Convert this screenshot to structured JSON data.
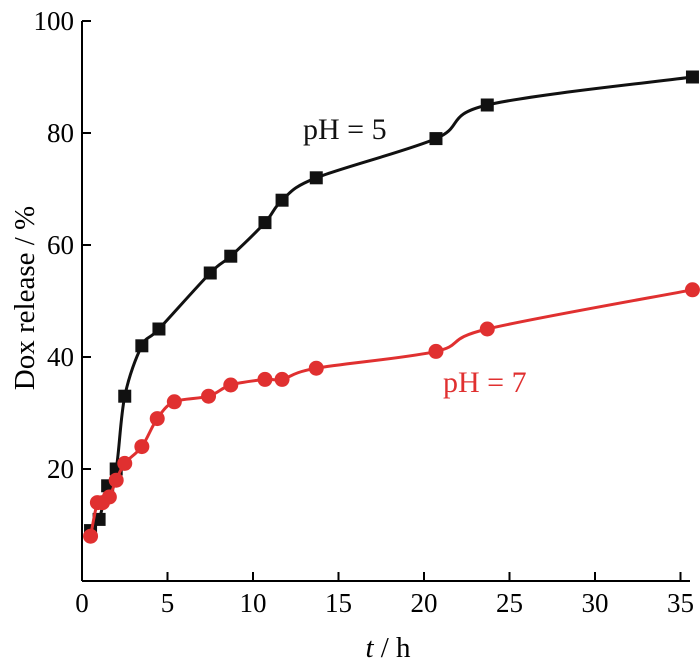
{
  "chart_data": {
    "type": "line",
    "xlabel": {
      "italic": "t",
      "rest": " / h"
    },
    "ylabel": "Dox release / %",
    "xlim": [
      0,
      36
    ],
    "ylim": [
      0,
      100
    ],
    "xticks": [
      0,
      5,
      10,
      15,
      20,
      25,
      30,
      35
    ],
    "yticks": [
      20,
      40,
      60,
      80,
      100
    ],
    "grid": false,
    "series": [
      {
        "name": "pH = 5",
        "color": "#111111",
        "marker": "square",
        "x": [
          0.5,
          1.0,
          1.5,
          2.0,
          2.5,
          3.5,
          4.5,
          7.5,
          8.7,
          10.7,
          11.7,
          13.7,
          20.7,
          23.7,
          35.7
        ],
        "y": [
          9,
          11,
          17,
          20,
          33,
          42,
          45,
          55,
          58,
          64,
          68,
          72,
          79,
          85,
          90
        ]
      },
      {
        "name": "pH = 7",
        "color": "#e03030",
        "marker": "circle",
        "x": [
          0.5,
          0.9,
          1.2,
          1.6,
          2.0,
          2.5,
          3.5,
          4.4,
          5.4,
          7.4,
          8.7,
          10.7,
          11.7,
          13.7,
          20.7,
          23.7,
          35.7
        ],
        "y": [
          8,
          14,
          14,
          15,
          18,
          21,
          24,
          29,
          32,
          33,
          35,
          36,
          36,
          38,
          41,
          45,
          52
        ]
      }
    ]
  }
}
